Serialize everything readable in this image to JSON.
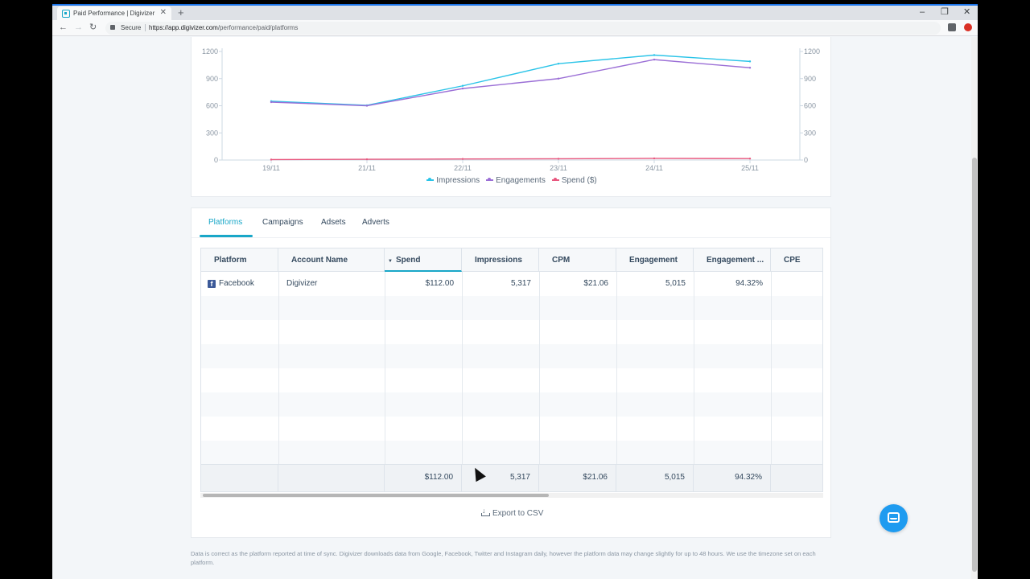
{
  "browser": {
    "tab_title": "Paid Performance | Digivizer",
    "new_tab": "+",
    "close_tab": "✕",
    "secure_label": "Secure",
    "url_host": "https://app.digivizer.com",
    "url_path": "/performance/paid/platforms",
    "window_controls": {
      "minimize": "–",
      "restore": "❐",
      "close": "✕"
    },
    "nav": {
      "back": "←",
      "forward": "→",
      "reload": "↻"
    }
  },
  "chart_data": {
    "type": "line",
    "categories": [
      "19/11",
      "21/11",
      "22/11",
      "23/11",
      "24/11",
      "25/11"
    ],
    "series": [
      {
        "name": "Impressions",
        "color": "#2bc4e8",
        "values": [
          650,
          605,
          820,
          1065,
          1160,
          1090
        ]
      },
      {
        "name": "Engagements",
        "color": "#9b6fd6",
        "values": [
          640,
          600,
          790,
          900,
          1110,
          1020
        ]
      },
      {
        "name": "Spend ($)",
        "color": "#e8577e",
        "values": [
          5,
          8,
          12,
          14,
          18,
          16
        ]
      }
    ],
    "ylim": [
      0,
      1200
    ],
    "yticks": [
      0,
      300,
      600,
      900,
      1200
    ],
    "ytick_labels": [
      "0",
      "300",
      "600",
      "900",
      "1200"
    ],
    "y2ticks": [
      0,
      300,
      600,
      900,
      1200
    ],
    "y2tick_labels": [
      "0",
      "300",
      "600",
      "900",
      "1200"
    ],
    "legend_position": "bottom-center",
    "grid": false
  },
  "tabs": [
    "Platforms",
    "Campaigns",
    "Adsets",
    "Adverts"
  ],
  "active_tab": "Platforms",
  "table": {
    "columns": [
      "Platform",
      "Account Name",
      "Spend",
      "Impressions",
      "CPM",
      "Engagement",
      "Engagement ...",
      "CPE"
    ],
    "sorted_column": "Spend",
    "sort_indicator": "▼",
    "rows": [
      {
        "platform": "Facebook",
        "platform_icon": "facebook-icon",
        "account": "Digivizer",
        "spend": "$112.00",
        "impressions": "5,317",
        "cpm": "$21.06",
        "engagement": "5,015",
        "engagement_rate": "94.32%",
        "cpe": "$"
      }
    ],
    "totals": {
      "spend": "$112.00",
      "impressions": "5,317",
      "cpm": "$21.06",
      "engagement": "5,015",
      "engagement_rate": "94.32%"
    }
  },
  "export_label": "Export to CSV",
  "footnote": "Data is correct as the platform reported at time of sync. Digivizer downloads data from Google, Facebook, Twitter and Instagram daily, however the platform data may change slightly for up to 48 hours. We use the timezone set on each platform.",
  "colors": {
    "accent": "#19a7c8",
    "chat": "#1e9bf0",
    "facebook": "#3b5998"
  },
  "chat_icon": "chat-bubble-icon"
}
